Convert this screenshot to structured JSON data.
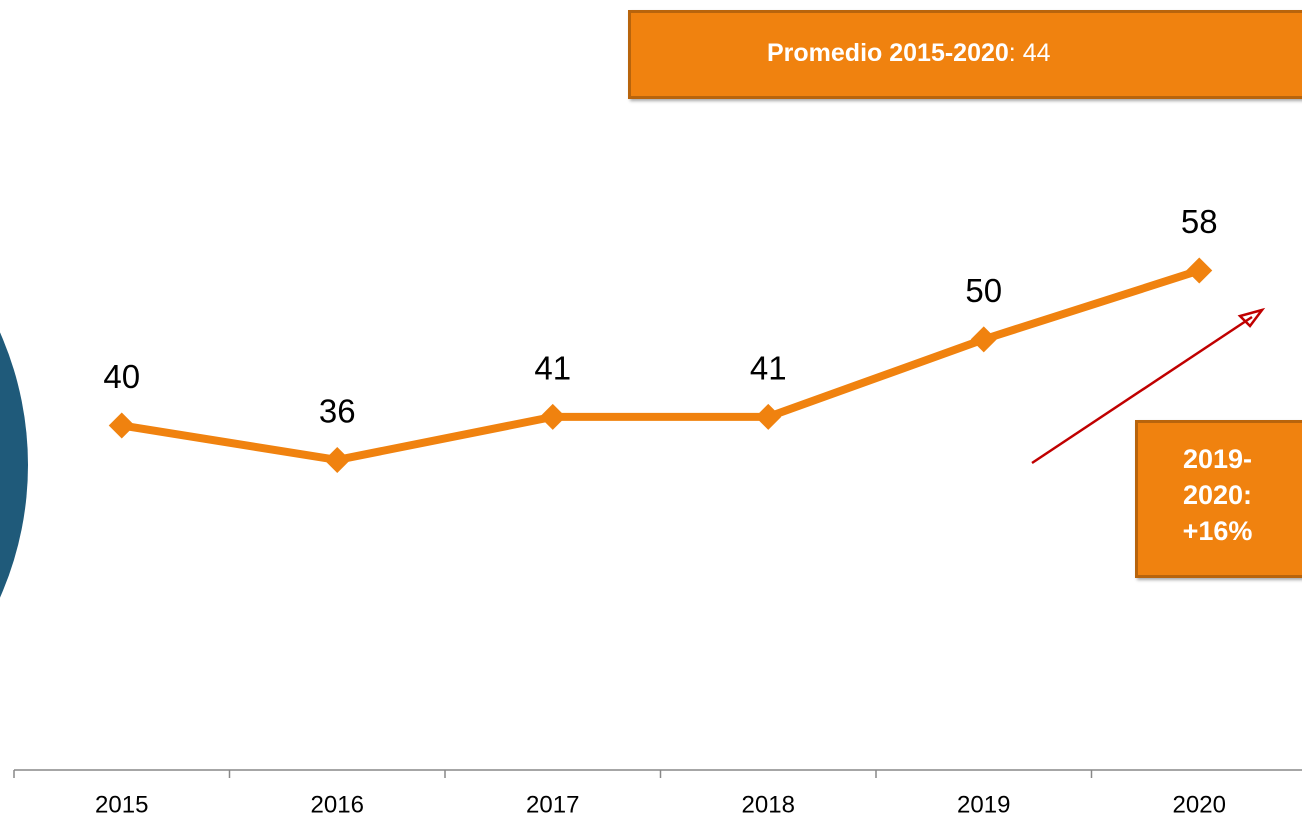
{
  "chart_data": {
    "type": "line",
    "categories": [
      "2015",
      "2016",
      "2017",
      "2018",
      "2019",
      "2020"
    ],
    "series": [
      {
        "name": null,
        "color": "#f0820f",
        "values": [
          40,
          36,
          41,
          41,
          50,
          58
        ]
      }
    ],
    "ylim": [
      0,
      80
    ],
    "annotations": [
      "Promedio 2015-2020",
      ": 44",
      "2019-2020: +16%"
    ]
  }
}
